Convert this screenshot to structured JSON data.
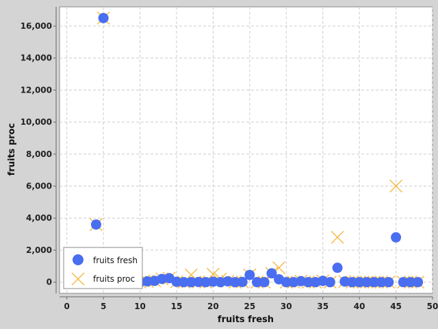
{
  "chart_data": {
    "type": "scatter",
    "title": "",
    "xlabel": "fruits fresh",
    "ylabel": "fruits proc",
    "xlim": [
      -1,
      50
    ],
    "ylim": [
      -700,
      17200
    ],
    "x_ticks": [
      0,
      5,
      10,
      15,
      20,
      25,
      30,
      35,
      40,
      45,
      50
    ],
    "x_tick_labels": [
      "0",
      "5",
      "10",
      "15",
      "20",
      "25",
      "30",
      "35",
      "40",
      "45",
      "50"
    ],
    "y_ticks": [
      0,
      2000,
      4000,
      6000,
      8000,
      10000,
      12000,
      14000,
      16000
    ],
    "y_tick_labels": [
      "0",
      "2,000",
      "4,000",
      "6,000",
      "8,000",
      "10,000",
      "12,000",
      "14,000",
      "16,000"
    ],
    "grid": true,
    "legend_position": "bottom-left",
    "background": "#ffffff",
    "series": [
      {
        "name": "fruits fresh",
        "marker": "circle",
        "color": "#4a6ef0",
        "x": [
          4,
          5,
          10,
          11,
          12,
          13,
          14,
          15,
          16,
          17,
          18,
          19,
          20,
          21,
          22,
          23,
          24,
          25,
          26,
          27,
          28,
          29,
          30,
          31,
          32,
          33,
          34,
          35,
          36,
          37,
          38,
          39,
          40,
          41,
          42,
          43,
          44,
          45,
          46,
          47,
          48
        ],
        "y": [
          3600,
          16500,
          0,
          50,
          80,
          200,
          250,
          20,
          0,
          0,
          10,
          0,
          30,
          0,
          50,
          0,
          10,
          450,
          0,
          0,
          550,
          180,
          0,
          0,
          60,
          0,
          0,
          80,
          0,
          900,
          40,
          0,
          0,
          0,
          0,
          0,
          0,
          2800,
          0,
          0,
          0
        ]
      },
      {
        "name": "fruits proc",
        "marker": "x",
        "color": "#f5b942",
        "x": [
          4,
          5,
          10,
          11,
          12,
          13,
          14,
          15,
          16,
          17,
          18,
          19,
          20,
          21,
          22,
          23,
          24,
          25,
          26,
          27,
          28,
          29,
          30,
          31,
          32,
          33,
          34,
          35,
          36,
          37,
          38,
          39,
          40,
          41,
          42,
          43,
          44,
          45,
          46,
          47,
          48
        ],
        "y": [
          3600,
          16500,
          0,
          50,
          80,
          200,
          250,
          20,
          0,
          450,
          10,
          0,
          500,
          200,
          50,
          0,
          10,
          450,
          0,
          0,
          550,
          900,
          0,
          0,
          60,
          0,
          0,
          80,
          0,
          2800,
          40,
          0,
          0,
          0,
          0,
          0,
          0,
          6000,
          0,
          0,
          0
        ]
      }
    ]
  }
}
